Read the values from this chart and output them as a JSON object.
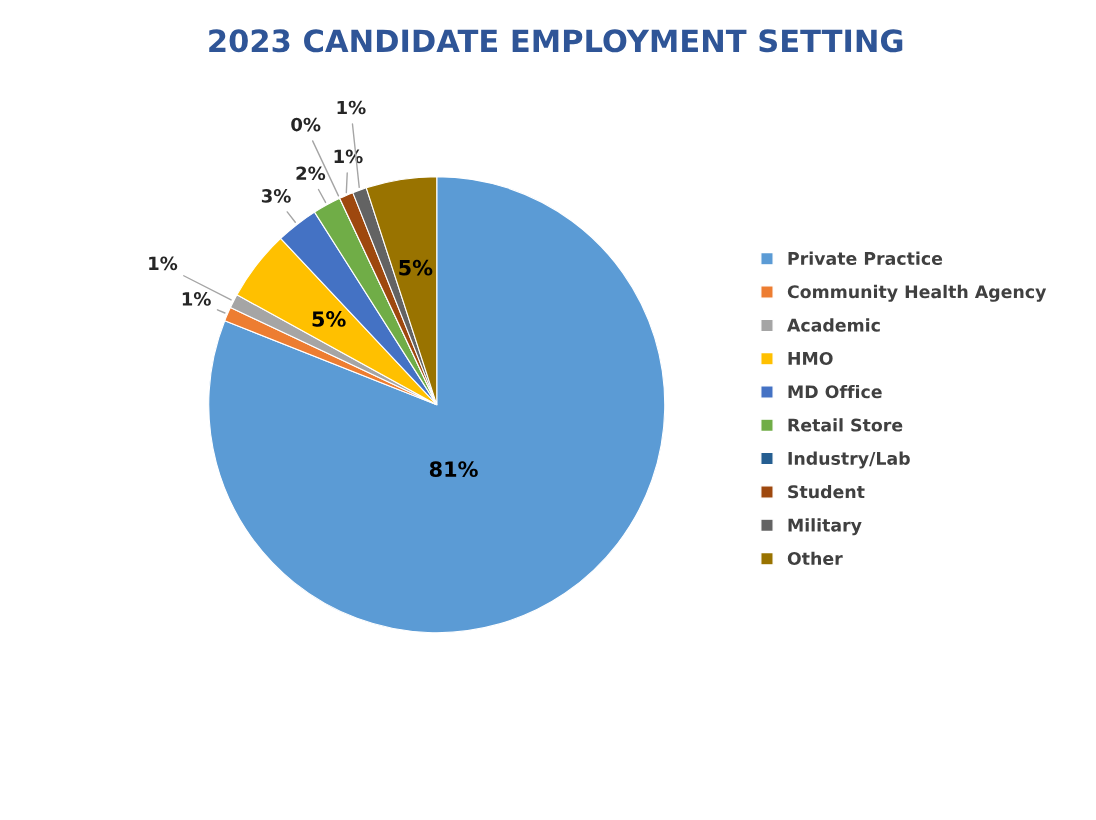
{
  "chart_data": {
    "type": "pie",
    "title": "2023 CANDIDATE EMPLOYMENT SETTING",
    "categories": [
      "Private Practice",
      "Community Health Agency",
      "Academic",
      "HMO",
      "MD Office",
      "Retail Store",
      "Industry/Lab",
      "Student",
      "Military",
      "Other"
    ],
    "values": [
      81,
      1,
      1,
      5,
      3,
      2,
      0,
      1,
      1,
      5
    ],
    "colors": [
      "#5b9bd5",
      "#ed7d31",
      "#a5a5a5",
      "#ffc000",
      "#4472c4",
      "#70ad47",
      "#255e91",
      "#9e480e",
      "#636363",
      "#997300"
    ],
    "value_labels": [
      "81%",
      "1%",
      "1%",
      "5%",
      "3%",
      "2%",
      "0%",
      "1%",
      "1%",
      "5%"
    ],
    "legend": "right"
  }
}
